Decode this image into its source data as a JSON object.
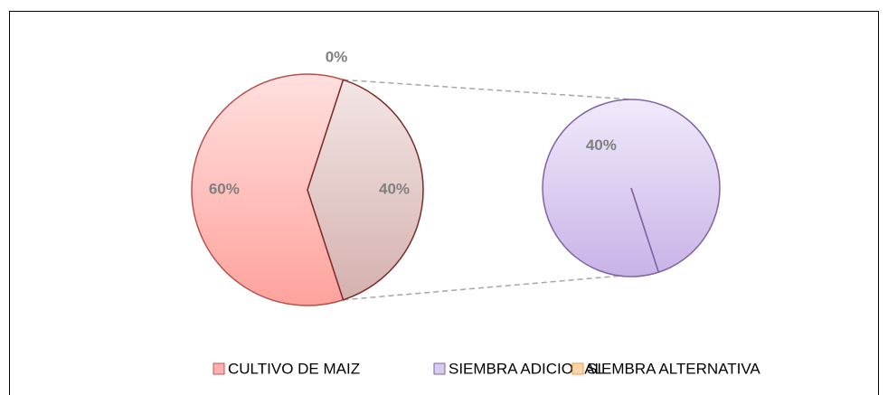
{
  "chart_data": {
    "type": "pie-of-pie",
    "categories": [
      "CULTIVO DE MAIZ",
      "SIEMBRA ADICIONAL",
      "SIEMBRA ALTERNATIVA"
    ],
    "values": [
      60,
      40,
      0
    ],
    "value_labels": [
      "60%",
      "40%",
      "0%"
    ],
    "colors": [
      "#ffb3b0",
      "#d9ccef",
      "#fcd5a8"
    ],
    "other": {
      "value": 40,
      "label": "40%",
      "color": "#e2c8c6"
    },
    "legend": "bottom"
  }
}
